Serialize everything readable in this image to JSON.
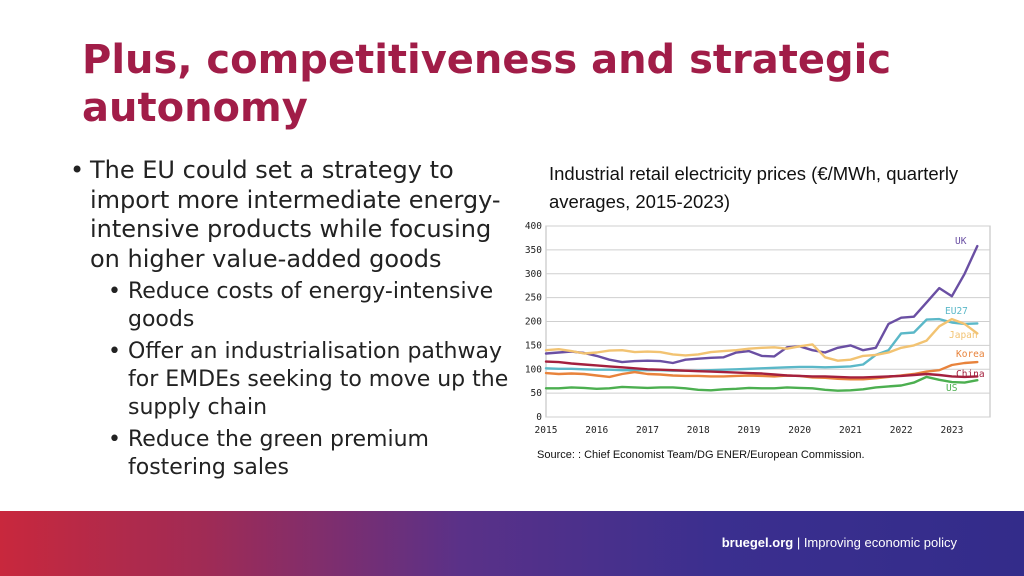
{
  "slide": {
    "title": "Plus, competitiveness and strategic autonomy",
    "bullets": [
      {
        "text": "The EU could set a strategy to import more intermediate energy-intensive products while focusing on higher value-added goods",
        "sub": [
          "Reduce costs of energy-intensive goods",
          "Offer an industrialisation pathway for EMDEs seeking to move up the supply chain",
          "Reduce the green premium fostering sales"
        ]
      }
    ],
    "chart_caption": "Industrial retail electricity prices (€/MWh, quarterly averages, 2015-2023)",
    "source_label": "Source:",
    "source_text": ": Chief Economist Team/DG ENER/European Commission."
  },
  "footer": {
    "site": "bruegel.org",
    "separator": " | ",
    "tagline": "Improving economic policy",
    "colors": [
      "#c8283d",
      "#5a3188",
      "#332c8a"
    ]
  },
  "chart_data": {
    "type": "line",
    "title": "Industrial retail electricity prices (€/MWh, quarterly averages, 2015-2023)",
    "xlabel": "",
    "ylabel": "",
    "x": [
      2015.0,
      2015.25,
      2015.5,
      2015.75,
      2016.0,
      2016.25,
      2016.5,
      2016.75,
      2017.0,
      2017.25,
      2017.5,
      2017.75,
      2018.0,
      2018.25,
      2018.5,
      2018.75,
      2019.0,
      2019.25,
      2019.5,
      2019.75,
      2020.0,
      2020.25,
      2020.5,
      2020.75,
      2021.0,
      2021.25,
      2021.5,
      2021.75,
      2022.0,
      2022.25,
      2022.5,
      2022.75,
      2023.0,
      2023.25,
      2023.5
    ],
    "xticks": [
      "2015",
      "2016",
      "2017",
      "2018",
      "2019",
      "2020",
      "2021",
      "2022",
      "2023"
    ],
    "xlim": [
      2015.0,
      2023.75
    ],
    "ylim": [
      0,
      400
    ],
    "yticks": [
      0,
      50,
      100,
      150,
      200,
      250,
      300,
      350,
      400
    ],
    "grid": true,
    "legend": "inline labels at right end of lines",
    "series": [
      {
        "name": "UK",
        "color": "#6a4fa3",
        "values": [
          133,
          135,
          137,
          134,
          128,
          120,
          115,
          117,
          118,
          117,
          113,
          120,
          122,
          124,
          125,
          135,
          138,
          128,
          127,
          146,
          148,
          140,
          135,
          145,
          150,
          140,
          145,
          195,
          208,
          210,
          240,
          270,
          253,
          300,
          358
        ]
      },
      {
        "name": "EU27",
        "color": "#5bb8c8",
        "values": [
          102,
          101,
          101,
          100,
          99,
          99,
          98,
          98,
          98,
          98,
          97,
          97,
          97,
          98,
          99,
          100,
          101,
          102,
          103,
          104,
          105,
          105,
          104,
          105,
          106,
          110,
          130,
          140,
          175,
          177,
          204,
          205,
          198,
          195,
          196
        ]
      },
      {
        "name": "Japan",
        "color": "#f2c372",
        "values": [
          140,
          142,
          138,
          133,
          135,
          139,
          140,
          136,
          137,
          136,
          131,
          129,
          131,
          136,
          138,
          140,
          143,
          145,
          146,
          143,
          148,
          152,
          125,
          118,
          120,
          128,
          130,
          135,
          145,
          150,
          160,
          190,
          205,
          195,
          175
        ]
      },
      {
        "name": "Korea",
        "color": "#e8833c",
        "values": [
          92,
          90,
          91,
          90,
          87,
          84,
          90,
          94,
          90,
          89,
          87,
          86,
          86,
          85,
          85,
          86,
          87,
          86,
          85,
          87,
          86,
          83,
          82,
          80,
          79,
          79,
          81,
          84,
          87,
          90,
          95,
          98,
          109,
          113,
          115
        ]
      },
      {
        "name": "China",
        "color": "#a4203e",
        "values": [
          116,
          115,
          112,
          110,
          108,
          106,
          104,
          102,
          100,
          99,
          98,
          97,
          96,
          95,
          94,
          93,
          92,
          91,
          89,
          87,
          86,
          85,
          85,
          84,
          83,
          83,
          84,
          85,
          86,
          88,
          90,
          88,
          85,
          84,
          85
        ]
      },
      {
        "name": "US",
        "color": "#4caf50",
        "values": [
          60,
          60,
          62,
          61,
          59,
          60,
          63,
          62,
          61,
          62,
          62,
          60,
          57,
          56,
          58,
          59,
          61,
          60,
          60,
          62,
          61,
          60,
          57,
          55,
          56,
          58,
          62,
          64,
          66,
          72,
          84,
          78,
          73,
          72,
          77
        ]
      }
    ]
  }
}
